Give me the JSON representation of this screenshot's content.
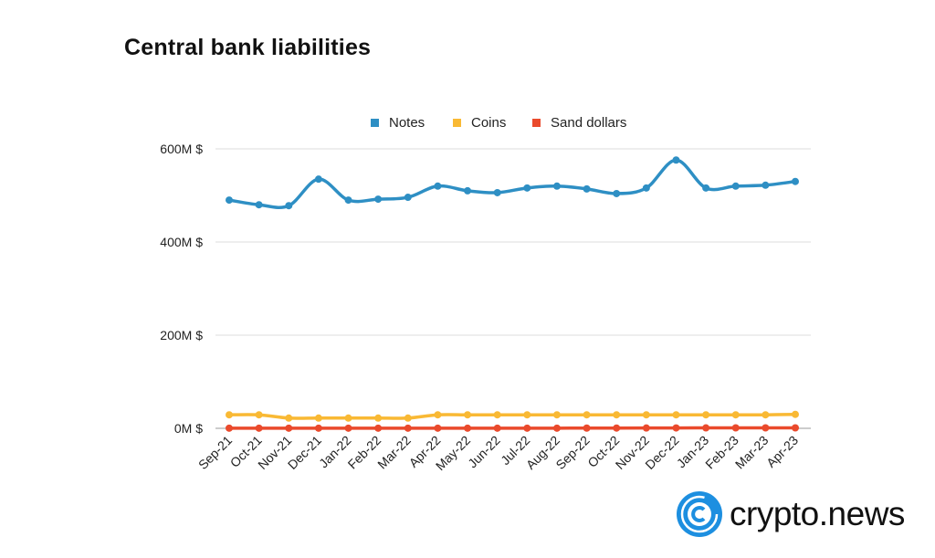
{
  "chart_data": {
    "type": "line",
    "title": "Central bank liabilities",
    "xlabel": "",
    "ylabel": "",
    "ylim": [
      0,
      600
    ],
    "yticks": [
      0,
      200,
      400,
      600
    ],
    "ytick_labels": [
      "0M $",
      "200M $",
      "400M $",
      "600M $"
    ],
    "grid": true,
    "legend_position": "top-center",
    "categories": [
      "Sep-21",
      "Oct-21",
      "Nov-21",
      "Dec-21",
      "Jan-22",
      "Feb-22",
      "Mar-22",
      "Apr-22",
      "May-22",
      "Jun-22",
      "Jul-22",
      "Aug-22",
      "Sep-22",
      "Oct-22",
      "Nov-22",
      "Dec-22",
      "Jan-23",
      "Feb-23",
      "Mar-23",
      "Apr-23"
    ],
    "series": [
      {
        "name": "Notes",
        "color": "#2e8fc4",
        "values": [
          490,
          480,
          478,
          535,
          490,
          492,
          496,
          520,
          510,
          506,
          516,
          520,
          514,
          504,
          516,
          576,
          516,
          520,
          522,
          530
        ]
      },
      {
        "name": "Coins",
        "color": "#f9b934",
        "values": [
          29,
          29,
          22,
          22,
          22,
          22,
          22,
          29,
          29,
          29,
          29,
          29,
          29,
          29,
          29,
          29,
          29,
          29,
          29,
          30
        ]
      },
      {
        "name": "Sand dollars",
        "color": "#ea4a2c",
        "values": [
          0.3,
          0.3,
          0.3,
          0.3,
          0.3,
          0.3,
          0.3,
          0.3,
          0.3,
          0.3,
          0.3,
          0.3,
          0.5,
          0.6,
          0.7,
          0.8,
          0.9,
          1,
          1,
          1
        ]
      }
    ]
  },
  "logo": {
    "text": "crypto.news",
    "color": "#1d8fe0"
  }
}
